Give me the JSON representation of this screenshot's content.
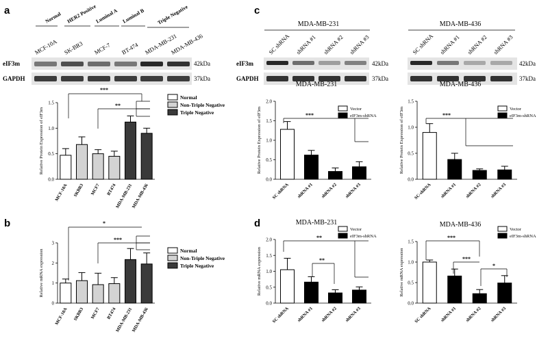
{
  "colors": {
    "normal": "#ffffff",
    "non_triple_negative": "#d3d3d3",
    "triple_negative": "#3a3a3a",
    "vector": "#ffffff",
    "shrna": "#000000",
    "blot_bg": "#e4e4e4",
    "band": "#1e1e1e"
  },
  "panels": {
    "a": "a",
    "b": "b",
    "c": "c",
    "d": "d"
  },
  "western_a": {
    "groups": [
      "Normal",
      "HER2 Positive",
      "Luminal A",
      "Luminal B",
      "Triple Negative"
    ],
    "lanes": [
      "MCF-10A",
      "SK-BR3",
      "MCF-7",
      "BT-474",
      "MDA-MB-231",
      "MDA-MB-436"
    ],
    "rows": [
      {
        "name": "eIF3m",
        "size": "42kDa"
      },
      {
        "name": "GAPDH",
        "size": "37kDa"
      }
    ]
  },
  "western_c": {
    "blots": [
      {
        "title": "MDA-MB-231",
        "lanes": [
          "SC shRNA",
          "shRNA #1",
          "shRNA #2",
          "shRNA #3"
        ]
      },
      {
        "title": "MDA-MB-436",
        "lanes": [
          "SC shRNA",
          "shRNA #1",
          "shRNA #2",
          "shRNA #3"
        ]
      }
    ],
    "rows": [
      {
        "name": "eIF3m",
        "size": "42kDa"
      },
      {
        "name": "GAPDH",
        "size": "37kDa"
      }
    ]
  },
  "chart_data": [
    {
      "id": "a-protein",
      "type": "bar",
      "ylabel": "Relative Protein Expression of eIF3m",
      "ylim": [
        0,
        1.5
      ],
      "yticks": [
        "0.0",
        "0.5",
        "1.0",
        "1.5"
      ],
      "categories": [
        "MCF-10A",
        "SKBR3",
        "MCF7",
        "BT474",
        "MDA-MB-231",
        "MDA-MB-436"
      ],
      "values": [
        0.47,
        0.68,
        0.5,
        0.45,
        1.12,
        0.9
      ],
      "errors": [
        0.13,
        0.15,
        0.08,
        0.1,
        0.12,
        0.1
      ],
      "groups": [
        "normal",
        "non_triple_negative",
        "non_triple_negative",
        "non_triple_negative",
        "triple_negative",
        "triple_negative"
      ],
      "legend": [
        {
          "key": "normal",
          "label": "Normal"
        },
        {
          "key": "non_triple_negative",
          "label": "Non-Triple Negative"
        },
        {
          "key": "triple_negative",
          "label": "Triple Negative"
        }
      ],
      "significance": [
        "***",
        "**"
      ]
    },
    {
      "id": "b-mrna",
      "type": "bar",
      "ylabel": "Relative mRNA expression",
      "ylim": [
        0,
        3
      ],
      "yticks": [
        "0",
        "1",
        "2",
        "3"
      ],
      "categories": [
        "MCF-10A",
        "SKBR3",
        "MCF7",
        "BT474",
        "MDA-MB-231",
        "MDA-MB-436"
      ],
      "values": [
        1.0,
        1.12,
        0.92,
        0.97,
        2.17,
        1.95
      ],
      "errors": [
        0.2,
        0.4,
        0.57,
        0.3,
        0.55,
        0.55
      ],
      "groups": [
        "normal",
        "non_triple_negative",
        "non_triple_negative",
        "non_triple_negative",
        "triple_negative",
        "triple_negative"
      ],
      "legend": [
        {
          "key": "normal",
          "label": "Normal"
        },
        {
          "key": "non_triple_negative",
          "label": "Non-Triple Negative"
        },
        {
          "key": "triple_negative",
          "label": "Triple Negative"
        }
      ],
      "significance": [
        "*",
        "***"
      ]
    },
    {
      "id": "c-231",
      "type": "bar",
      "title": "MDA-MB-231",
      "ylabel": "Relative Protein Expression of eIF3m",
      "ylim": [
        0,
        2.0
      ],
      "yticks": [
        "0.0",
        "0.5",
        "1.0",
        "1.5",
        "2.0"
      ],
      "categories": [
        "SC shRNA",
        "shRNA #1",
        "shRNA #2",
        "shRNA #3"
      ],
      "values": [
        1.28,
        0.62,
        0.2,
        0.32
      ],
      "errors": [
        0.2,
        0.12,
        0.09,
        0.13
      ],
      "groups": [
        "vector",
        "shrna",
        "shrna",
        "shrna"
      ],
      "legend": [
        {
          "key": "vector",
          "label": "Vector"
        },
        {
          "key": "shrna",
          "label": "eIF3m-shRNA"
        }
      ],
      "significance": [
        "***"
      ]
    },
    {
      "id": "c-436",
      "type": "bar",
      "title": "MDA-MB-436",
      "ylabel": "Relative Protein Expression of eIF3m",
      "ylim": [
        0,
        1.5
      ],
      "yticks": [
        "0.0",
        "0.5",
        "1.0",
        "1.5"
      ],
      "categories": [
        "SC-shRNA",
        "shRNA #1",
        "shRNA #2",
        "shRNA #3"
      ],
      "values": [
        0.9,
        0.38,
        0.17,
        0.18
      ],
      "errors": [
        0.17,
        0.12,
        0.03,
        0.07
      ],
      "groups": [
        "vector",
        "shrna",
        "shrna",
        "shrna"
      ],
      "legend": [
        {
          "key": "vector",
          "label": "Vector"
        },
        {
          "key": "shrna",
          "label": "eIF3m-shRNA"
        }
      ],
      "significance": [
        "***"
      ]
    },
    {
      "id": "d-231",
      "type": "bar",
      "title": "MDA-MB-231",
      "ylabel": "Relative mRNA expression",
      "ylim": [
        0,
        2.0
      ],
      "yticks": [
        "0.0",
        "0.5",
        "1.0",
        "1.5",
        "2.0"
      ],
      "categories": [
        "SC shRNA",
        "shRNA #1",
        "shRNA #2",
        "shRNA #3"
      ],
      "values": [
        1.05,
        0.66,
        0.32,
        0.41
      ],
      "errors": [
        0.36,
        0.17,
        0.1,
        0.1
      ],
      "groups": [
        "vector",
        "shrna",
        "shrna",
        "shrna"
      ],
      "legend": [
        {
          "key": "vector",
          "label": "Vector"
        },
        {
          "key": "shrna",
          "label": "eIF3m-shRNA"
        }
      ],
      "significance": [
        "**",
        "**"
      ]
    },
    {
      "id": "d-436",
      "type": "bar",
      "title": "MDA-MB-436",
      "ylabel": "Relative mRNA expression",
      "ylim": [
        0,
        1.5
      ],
      "yticks": [
        "0.0",
        "0.5",
        "1.0",
        "1.5"
      ],
      "categories": [
        "SC shRNA",
        "shRNA #1",
        "shRNA #2",
        "shRNA #3"
      ],
      "values": [
        1.0,
        0.66,
        0.23,
        0.49
      ],
      "errors": [
        0.05,
        0.17,
        0.1,
        0.18
      ],
      "groups": [
        "vector",
        "shrna",
        "shrna",
        "shrna"
      ],
      "legend": [
        {
          "key": "vector",
          "label": "Vector"
        },
        {
          "key": "shrna",
          "label": "eIF3m-shRNA"
        }
      ],
      "significance": [
        "***",
        "***",
        "*"
      ]
    }
  ]
}
